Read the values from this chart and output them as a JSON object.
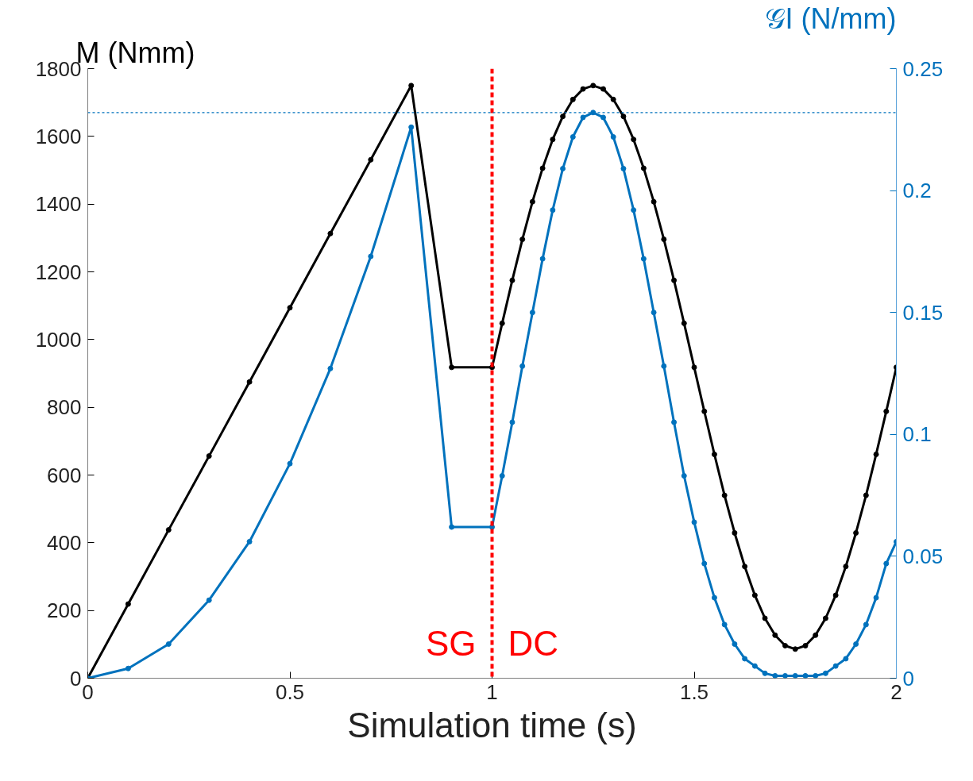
{
  "chart_data": {
    "type": "line",
    "xlabel": "Simulation time (s)",
    "ylabel": "M (Nmm)",
    "y2label": "𝒢I (N/mm)",
    "xlim": [
      0,
      2
    ],
    "xticks": [
      0,
      0.5,
      1,
      1.5,
      2
    ],
    "ylim": [
      0,
      1800
    ],
    "yticks": [
      0,
      200,
      400,
      600,
      800,
      1000,
      1200,
      1400,
      1600,
      1800
    ],
    "y2lim": [
      0,
      0.25
    ],
    "y2ticks": [
      0,
      0.05,
      0.1,
      0.15,
      0.2,
      0.25
    ],
    "grid": false,
    "marker": "circle",
    "line_style": "solid",
    "series": [
      {
        "color": "#000000",
        "x": [
          0,
          0.1,
          0.2,
          0.3,
          0.4,
          0.5,
          0.6,
          0.7,
          0.8,
          0.9,
          1.0,
          1.025,
          1.05,
          1.075,
          1.1,
          1.125,
          1.15,
          1.175,
          1.2,
          1.225,
          1.25,
          1.275,
          1.3,
          1.325,
          1.35,
          1.375,
          1.4,
          1.425,
          1.45,
          1.475,
          1.5,
          1.525,
          1.55,
          1.575,
          1.6,
          1.625,
          1.65,
          1.675,
          1.7,
          1.725,
          1.75,
          1.775,
          1.8,
          1.825,
          1.85,
          1.875,
          1.9,
          1.925,
          1.95,
          1.975,
          2.0
        ],
        "values": [
          0,
          219,
          438,
          656,
          875,
          1094,
          1313,
          1531,
          1750,
          918,
          918,
          1048,
          1175,
          1296,
          1407,
          1506,
          1591,
          1659,
          1709,
          1740,
          1750,
          1740,
          1709,
          1659,
          1591,
          1506,
          1407,
          1296,
          1175,
          1048,
          918,
          788,
          661,
          540,
          429,
          330,
          245,
          177,
          127,
          96,
          86,
          96,
          127,
          177,
          245,
          330,
          429,
          540,
          661,
          788,
          918
        ]
      },
      {
        "color": "#0072bd",
        "axis": "y2",
        "x": [
          0,
          0.1,
          0.2,
          0.3,
          0.4,
          0.5,
          0.6,
          0.7,
          0.8,
          0.9,
          1.0,
          1.025,
          1.05,
          1.075,
          1.1,
          1.125,
          1.15,
          1.175,
          1.2,
          1.225,
          1.25,
          1.275,
          1.3,
          1.325,
          1.35,
          1.375,
          1.4,
          1.425,
          1.45,
          1.475,
          1.5,
          1.525,
          1.55,
          1.575,
          1.6,
          1.625,
          1.65,
          1.675,
          1.7,
          1.725,
          1.75,
          1.775,
          1.8,
          1.825,
          1.85,
          1.875,
          1.9,
          1.925,
          1.95,
          1.975,
          2.0
        ],
        "values": [
          0,
          0.004,
          0.014,
          0.032,
          0.056,
          0.088,
          0.127,
          0.173,
          0.226,
          0.062,
          0.062,
          0.083,
          0.105,
          0.128,
          0.15,
          0.172,
          0.192,
          0.209,
          0.222,
          0.23,
          0.232,
          0.23,
          0.222,
          0.209,
          0.192,
          0.172,
          0.15,
          0.128,
          0.105,
          0.083,
          0.064,
          0.047,
          0.033,
          0.022,
          0.014,
          0.008,
          0.005,
          0.002,
          0.001,
          0.001,
          0.001,
          0.001,
          0.001,
          0.002,
          0.005,
          0.008,
          0.014,
          0.022,
          0.033,
          0.047,
          0.056
        ]
      }
    ],
    "ref_lines": [
      {
        "axis": "x",
        "value": 1,
        "color": "#ff0000",
        "line_style": "dashed"
      },
      {
        "axis": "y2",
        "value": 0.232,
        "color": "#0072bd",
        "line_style": "dotted"
      }
    ],
    "annotations": [
      "SG",
      "DC"
    ]
  }
}
